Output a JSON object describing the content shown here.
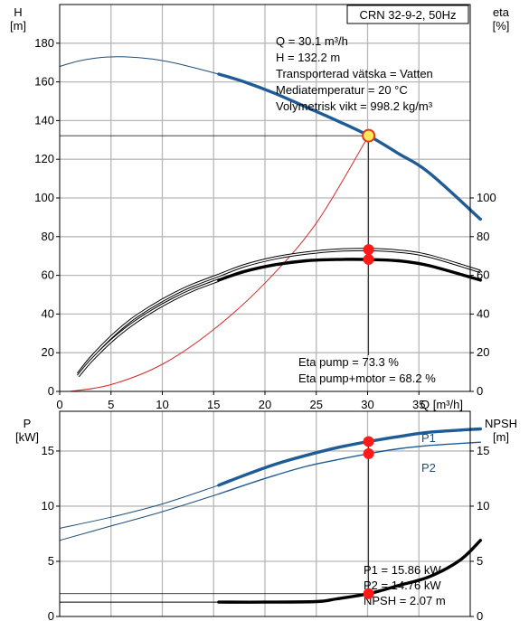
{
  "chart_data": [
    {
      "type": "line",
      "title": "CRN 32-9-2, 50Hz",
      "x_axis": {
        "label": "Q [m³/h]",
        "ticks": [
          "0",
          "5",
          "10",
          "15",
          "20",
          "25",
          "30",
          "35"
        ],
        "range": [
          0,
          40
        ]
      },
      "y_left": {
        "name": "H",
        "unit": "[m]",
        "ticks": [
          "0",
          "20",
          "40",
          "60",
          "80",
          "100",
          "120",
          "140",
          "160",
          "180"
        ],
        "range": [
          0,
          200
        ]
      },
      "y_right": {
        "name": "eta",
        "unit": "[%]",
        "ticks": [
          "0",
          "20",
          "40",
          "60",
          "80",
          "100"
        ],
        "range": [
          0,
          200
        ]
      },
      "grid": true,
      "info_lines": [
        "Q = 30.1 m³/h",
        "H = 132.2 m",
        "Transporterad vätska = Vatten",
        "Mediatemperatur = 20 °C",
        "Volymetrisk vikt = 998.2 kg/m³"
      ],
      "eta_lines": [
        "Eta pump = 73.3 %",
        "Eta pump+motor = 68.2 %"
      ],
      "duty_point": {
        "q": 30.1,
        "h": 132.2,
        "eta_pump": 73.3,
        "eta_total": 68.2
      },
      "series": [
        {
          "key": "h_thin",
          "color": "#1f4e79",
          "x": [
            0,
            2,
            4,
            5.5,
            7,
            9,
            11,
            13,
            15.5
          ],
          "y": [
            168,
            171,
            172.6,
            173,
            172.8,
            171.8,
            170,
            167.5,
            164
          ]
        },
        {
          "key": "h_op",
          "color": "#1f5c96",
          "x": [
            15.5,
            18,
            21,
            24,
            27,
            30.1,
            33,
            36,
            41
          ],
          "y": [
            164,
            160,
            154,
            147,
            140,
            132.2,
            123,
            113,
            89
          ]
        },
        {
          "key": "system",
          "color": "#d62b2b",
          "x": [
            1,
            5,
            10,
            15,
            20,
            25,
            30.1
          ],
          "y": [
            0,
            3.5,
            14,
            32,
            56,
            87,
            132.2
          ]
        },
        {
          "key": "eta_pump_thin",
          "color": "#000000",
          "x": [
            1.8,
            3,
            5,
            7,
            9,
            11,
            13,
            15.5
          ],
          "y": [
            9,
            17,
            28,
            37,
            44,
            50,
            55,
            60
          ]
        },
        {
          "key": "eta_pump",
          "color": "#000000",
          "x": [
            15.5,
            18,
            21,
            24,
            27,
            30.1,
            33,
            36,
            41
          ],
          "y": [
            60,
            65,
            69,
            71.5,
            73,
            73.3,
            72.5,
            70,
            62
          ]
        },
        {
          "key": "eta_total_thin",
          "color": "#000000",
          "x": [
            1.8,
            3,
            5,
            7,
            9,
            11,
            13,
            15.5
          ],
          "y": [
            8,
            15.5,
            26,
            34.5,
            41.5,
            47.5,
            52.5,
            57.5
          ]
        },
        {
          "key": "eta_total",
          "color": "#000000",
          "x": [
            15.5,
            18,
            21,
            24,
            27,
            30.1,
            33,
            36,
            41
          ],
          "y": [
            57.5,
            62,
            65.5,
            67.5,
            68.2,
            68.2,
            67.5,
            65,
            57.5
          ]
        }
      ]
    },
    {
      "type": "line",
      "x_axis": {
        "range": [
          0,
          40
        ]
      },
      "y_left": {
        "name": "P",
        "unit": "[kW]",
        "ticks": [
          "0",
          "5",
          "10",
          "15"
        ],
        "range": [
          0,
          18.6
        ]
      },
      "y_right": {
        "name": "NPSH",
        "unit": "[m]",
        "ticks": [
          "0",
          "5",
          "10",
          "15"
        ],
        "range": [
          0,
          18.6
        ]
      },
      "grid": true,
      "labels": {
        "p1": "P1",
        "p2": "P2"
      },
      "info_lines": [
        "P1 = 15.86 kW",
        "P2 = 14.76 kW",
        "NPSH = 2.07 m"
      ],
      "duty_point": {
        "q": 30.1,
        "p1": 15.86,
        "p2": 14.76,
        "npsh": 2.07
      },
      "series": [
        {
          "key": "p1_thin",
          "color": "#1f4e79",
          "x": [
            0,
            5,
            10,
            15.5
          ],
          "y": [
            8,
            9,
            10.2,
            11.9
          ]
        },
        {
          "key": "p1",
          "color": "#1f5c96",
          "x": [
            15.5,
            18,
            21,
            24,
            27,
            30.1,
            33,
            36,
            41
          ],
          "y": [
            11.9,
            12.8,
            13.8,
            14.6,
            15.3,
            15.86,
            16.3,
            16.7,
            17
          ]
        },
        {
          "key": "p2_thin",
          "color": "#1f4e79",
          "x": [
            0,
            5,
            10,
            15.5
          ],
          "y": [
            6.9,
            8.2,
            9.5,
            11.1
          ]
        },
        {
          "key": "p2",
          "color": "#1f5c96",
          "x": [
            15.5,
            18,
            21,
            24,
            27,
            30.1,
            33,
            36,
            41
          ],
          "y": [
            11.1,
            11.9,
            12.8,
            13.6,
            14.2,
            14.76,
            15.2,
            15.5,
            15.8
          ]
        },
        {
          "key": "npsh_thin",
          "color": "#000000",
          "x": [
            0,
            15.5
          ],
          "y": [
            1.3,
            1.3
          ]
        },
        {
          "key": "npsh",
          "color": "#000000",
          "x": [
            15.5,
            20,
            25,
            27,
            30.1,
            33,
            36,
            39,
            41
          ],
          "y": [
            1.3,
            1.3,
            1.35,
            1.6,
            2.07,
            2.8,
            3.6,
            5.1,
            6.9
          ]
        }
      ]
    }
  ]
}
